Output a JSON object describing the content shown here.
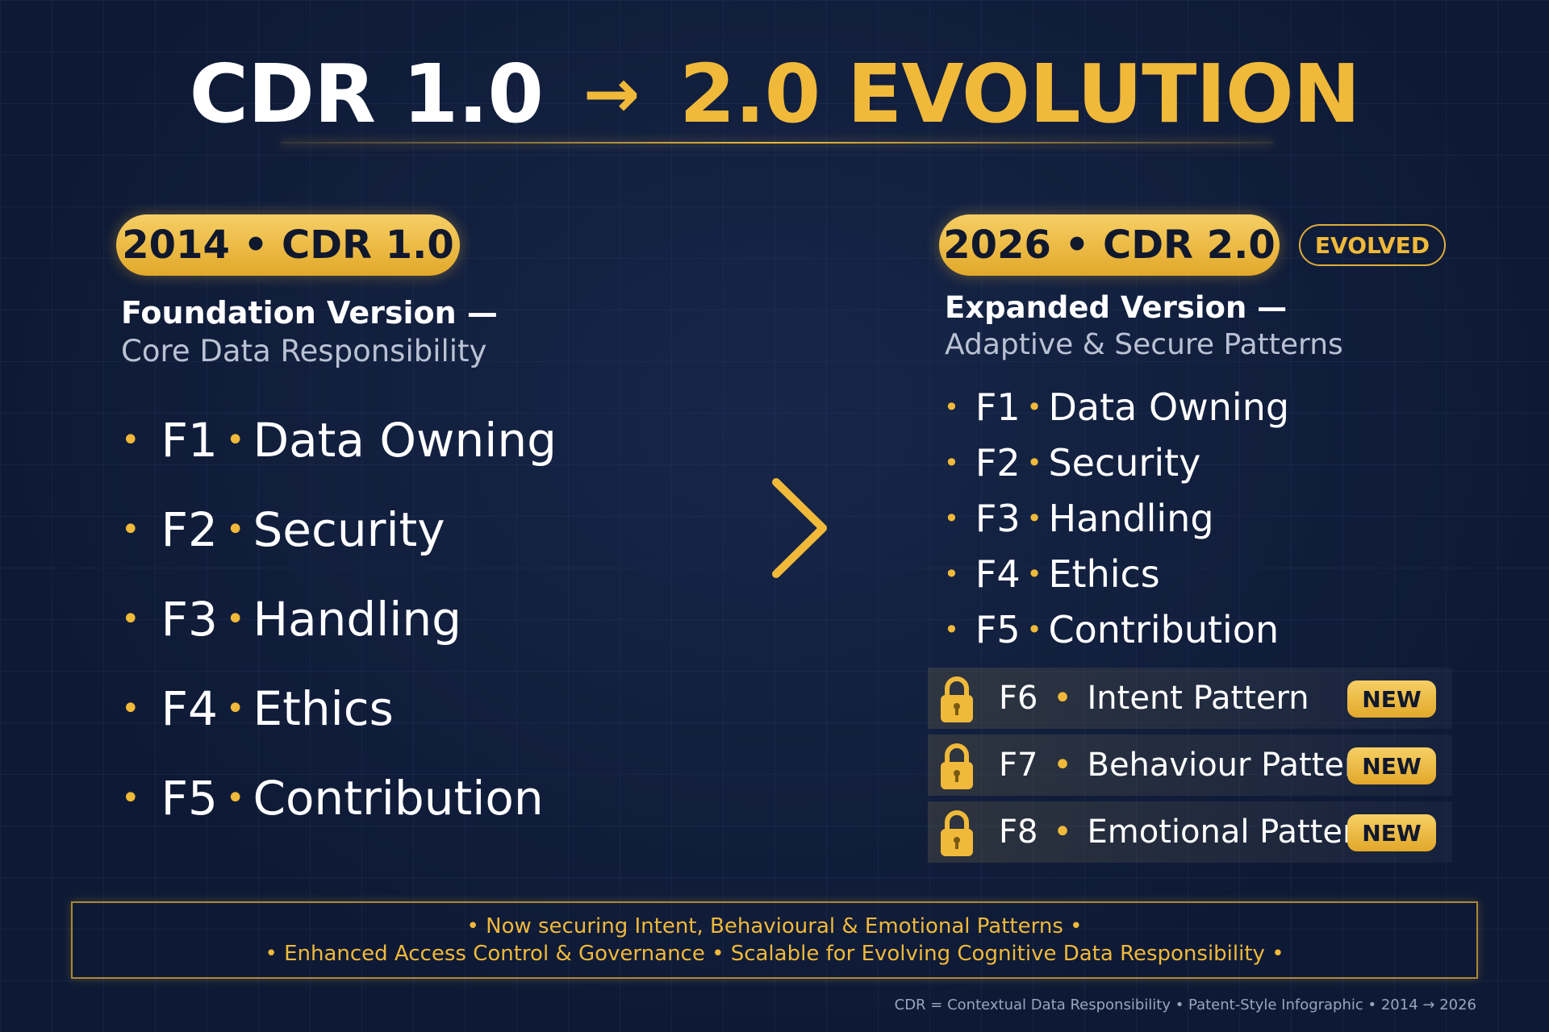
{
  "title": {
    "left": "CDR 1.0",
    "arrow": "→",
    "right": "2.0 EVOLUTION"
  },
  "left_panel": {
    "pill": "2014 • CDR 1.0",
    "heading": "Foundation Version —",
    "description": "Core Data Responsibility",
    "items": [
      {
        "code": "F1",
        "label": "Data Owning"
      },
      {
        "code": "F2",
        "label": "Security"
      },
      {
        "code": "F3",
        "label": "Handling"
      },
      {
        "code": "F4",
        "label": "Ethics"
      },
      {
        "code": "F5",
        "label": "Contribution"
      }
    ]
  },
  "right_panel": {
    "pill": "2026 • CDR 2.0",
    "badge": "EVOLVED",
    "heading": "Expanded Version —",
    "description": "Adaptive & Secure Patterns",
    "items": [
      {
        "code": "F1",
        "label": "Data Owning"
      },
      {
        "code": "F2",
        "label": "Security"
      },
      {
        "code": "F3",
        "label": "Handling"
      },
      {
        "code": "F4",
        "label": "Ethics"
      },
      {
        "code": "F5",
        "label": "Contribution"
      }
    ],
    "new_items": [
      {
        "code": "F6",
        "label": "Intent Pattern",
        "badge": "NEW"
      },
      {
        "code": "F7",
        "label": "Behaviour Pattern",
        "badge": "NEW"
      },
      {
        "code": "F8",
        "label": "Emotional Pattern",
        "badge": "NEW"
      }
    ]
  },
  "separator": "•",
  "footer": {
    "line1": "• Now securing Intent, Behavioural & Emotional Patterns •",
    "line2": "• Enhanced Access Control & Governance • Scalable for Evolving Cognitive Data Responsibility •"
  },
  "footnote": "CDR = Contextual Data Responsibility • Patent-Style Infographic • 2014 → 2026",
  "colors": {
    "background": "#0e1a35",
    "gold": "#f0b93a",
    "muted_text": "#b9c1d3"
  },
  "icons": {
    "center_arrow": "arrow-right-icon",
    "lock": "lock-icon",
    "bullet": "bullet-dot"
  }
}
